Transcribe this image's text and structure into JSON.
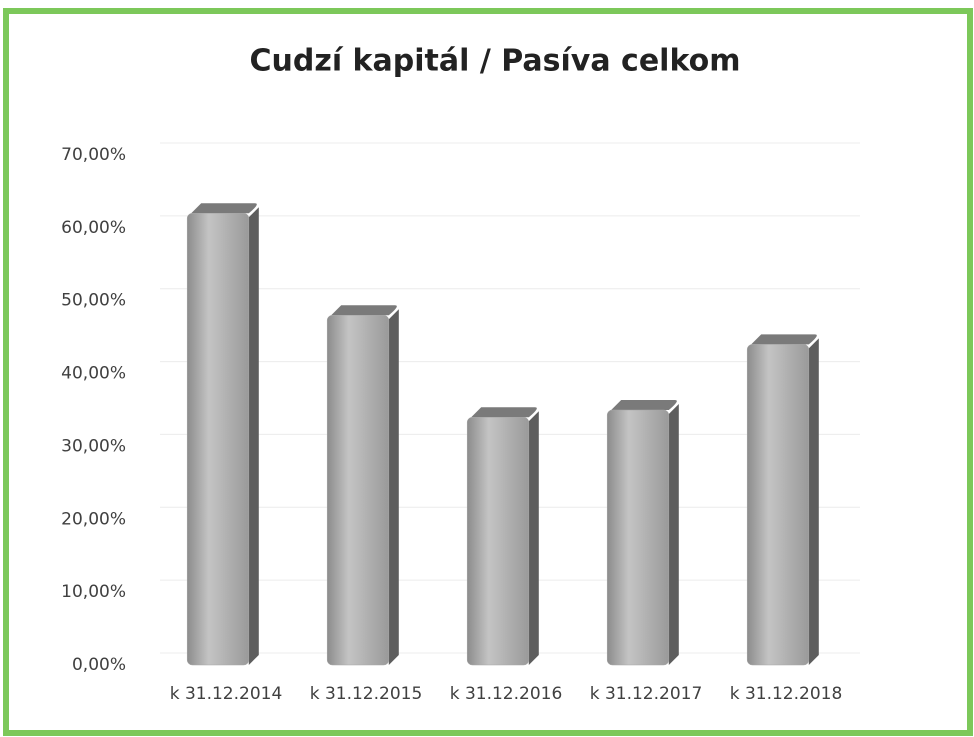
{
  "chart_data": {
    "type": "bar",
    "title": "Cudzí kapitál / Pasíva celkom",
    "categories": [
      "k 31.12.2014",
      "k 31.12.2015",
      "k 31.12.2016",
      "k 31.12.2017",
      "k 31.12.2018"
    ],
    "values": [
      62,
      48,
      34,
      35,
      44
    ],
    "color": "#a6a6a6",
    "ylim": [
      0,
      70
    ],
    "yticks": [
      {
        "value": 0,
        "label": "0,00%"
      },
      {
        "value": 10,
        "label": "10,00%"
      },
      {
        "value": 20,
        "label": "20,00%"
      },
      {
        "value": 30,
        "label": "30,00%"
      },
      {
        "value": 40,
        "label": "40,00%"
      },
      {
        "value": 50,
        "label": "50,00%"
      },
      {
        "value": 60,
        "label": "60,00%"
      },
      {
        "value": 70,
        "label": "70,00%"
      }
    ],
    "grid": true
  }
}
